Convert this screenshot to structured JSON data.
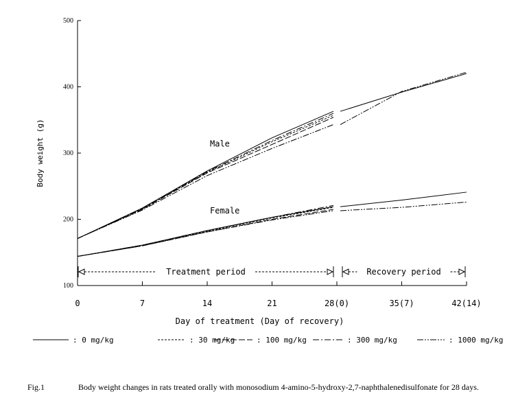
{
  "chart_data": {
    "type": "line",
    "title": "",
    "xlabel": "Day of treatment (Day of recovery)",
    "ylabel": "Body weight (g)",
    "ylim": [
      100,
      500
    ],
    "yticks": [
      "100",
      "200",
      "300",
      "400",
      "500"
    ],
    "xlim": [
      0,
      42
    ],
    "xticks": [
      {
        "x": 0,
        "label": "0"
      },
      {
        "x": 7,
        "label": "7"
      },
      {
        "x": 14,
        "label": "14"
      },
      {
        "x": 21,
        "label": "21"
      },
      {
        "x": 28,
        "label": "28(0)"
      },
      {
        "x": 35,
        "label": "35(7)"
      },
      {
        "x": 42,
        "label": "42(14)"
      }
    ],
    "periods": [
      {
        "label": "Treatment period",
        "start": 0,
        "end": 28
      },
      {
        "label": "Recovery period",
        "start": 28,
        "end": 42
      }
    ],
    "group_labels": {
      "male": "Male",
      "female": "Female"
    },
    "legend_position": "bottom",
    "series": [
      {
        "name": "0 mg/kg",
        "style": "solid",
        "sex": "male",
        "x": [
          0,
          7,
          14,
          21,
          28,
          35,
          42
        ],
        "values": [
          171,
          217,
          273,
          323,
          363,
          392,
          420
        ]
      },
      {
        "name": "30 mg/kg",
        "style": "dashed",
        "sex": "male",
        "x": [
          0,
          7,
          14,
          21,
          28
        ],
        "values": [
          171,
          216,
          271,
          317,
          357
        ]
      },
      {
        "name": "100 mg/kg",
        "style": "longdash",
        "sex": "male",
        "x": [
          0,
          7,
          14,
          21,
          28
        ],
        "values": [
          171,
          215,
          270,
          313,
          354
        ]
      },
      {
        "name": "300 mg/kg",
        "style": "dashdot",
        "sex": "male",
        "x": [
          0,
          7,
          14,
          21,
          28
        ],
        "values": [
          171,
          216,
          272,
          319,
          360
        ]
      },
      {
        "name": "1000 mg/kg",
        "style": "dashdotdot",
        "sex": "male",
        "x": [
          0,
          7,
          14,
          21,
          28,
          35,
          42
        ],
        "values": [
          171,
          214,
          266,
          307,
          343,
          393,
          422
        ]
      },
      {
        "name": "0 mg/kg",
        "style": "solid",
        "sex": "female",
        "x": [
          0,
          7,
          14,
          21,
          28,
          35,
          42
        ],
        "values": [
          144,
          161,
          183,
          203,
          219,
          229,
          241
        ]
      },
      {
        "name": "30 mg/kg",
        "style": "dashed",
        "sex": "female",
        "x": [
          0,
          7,
          14,
          21,
          28
        ],
        "values": [
          144,
          160,
          182,
          202,
          218
        ]
      },
      {
        "name": "100 mg/kg",
        "style": "longdash",
        "sex": "female",
        "x": [
          0,
          7,
          14,
          21,
          28
        ],
        "values": [
          144,
          160,
          181,
          200,
          215
        ]
      },
      {
        "name": "300 mg/kg",
        "style": "dashdot",
        "sex": "female",
        "x": [
          0,
          7,
          14,
          21,
          28
        ],
        "values": [
          144,
          161,
          183,
          203,
          221
        ]
      },
      {
        "name": "1000 mg/kg",
        "style": "dashdotdot",
        "sex": "female",
        "x": [
          0,
          7,
          14,
          21,
          28,
          35,
          42
        ],
        "values": [
          144,
          160,
          181,
          199,
          213,
          218,
          226
        ]
      }
    ],
    "legend": [
      {
        "label": ": 0 mg/kg",
        "style": "solid"
      },
      {
        "label": ": 30 mg/kg",
        "style": "dashed"
      },
      {
        "label": ": 100 mg/kg",
        "style": "longdash"
      },
      {
        "label": ": 300 mg/kg",
        "style": "dashdot"
      },
      {
        "label": ": 1000 mg/kg",
        "style": "dashdotdot"
      }
    ]
  },
  "caption": {
    "label": "Fig.1",
    "text": "Body weight changes in rats treated orally with monosodium 4-amino-5-hydroxy-2,7-naphthalenedisulfonate for 28 days."
  }
}
